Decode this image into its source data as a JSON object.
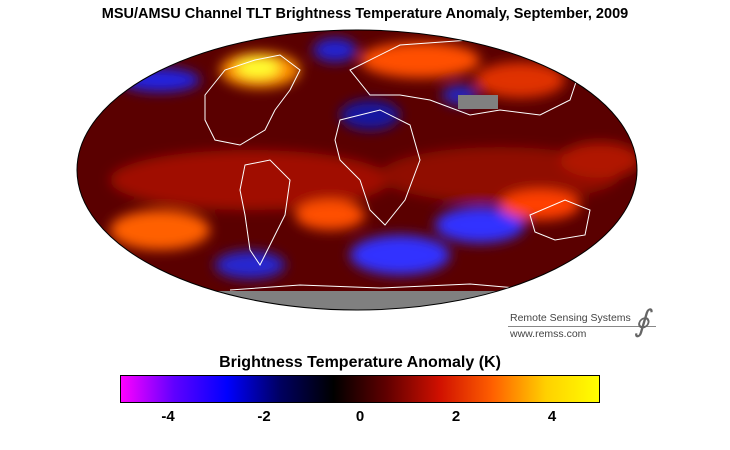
{
  "title": "MSU/AMSU Channel TLT Brightness Temperature Anomaly, September, 2009",
  "map": {
    "projection": "Mollweide",
    "variable": "TLT Brightness Temperature Anomaly",
    "no_data_color": "#808080",
    "coastline_color": "#ffffff"
  },
  "credit": {
    "name": "Remote Sensing Systems",
    "url": "www.remss.com",
    "logo_icon": "rss-integral-logo"
  },
  "colorbar": {
    "label": "Brightness Temperature Anomaly (K)",
    "min": -5,
    "max": 5,
    "ticks": [
      "-4",
      "-2",
      "0",
      "2",
      "4"
    ],
    "tick_values": [
      -4,
      -2,
      0,
      2,
      4
    ],
    "colors": [
      "#ff00ff",
      "#6000ff",
      "#0000ff",
      "#000060",
      "#000000",
      "#600000",
      "#d01000",
      "#ff6000",
      "#ffd000",
      "#ffff00"
    ]
  }
}
